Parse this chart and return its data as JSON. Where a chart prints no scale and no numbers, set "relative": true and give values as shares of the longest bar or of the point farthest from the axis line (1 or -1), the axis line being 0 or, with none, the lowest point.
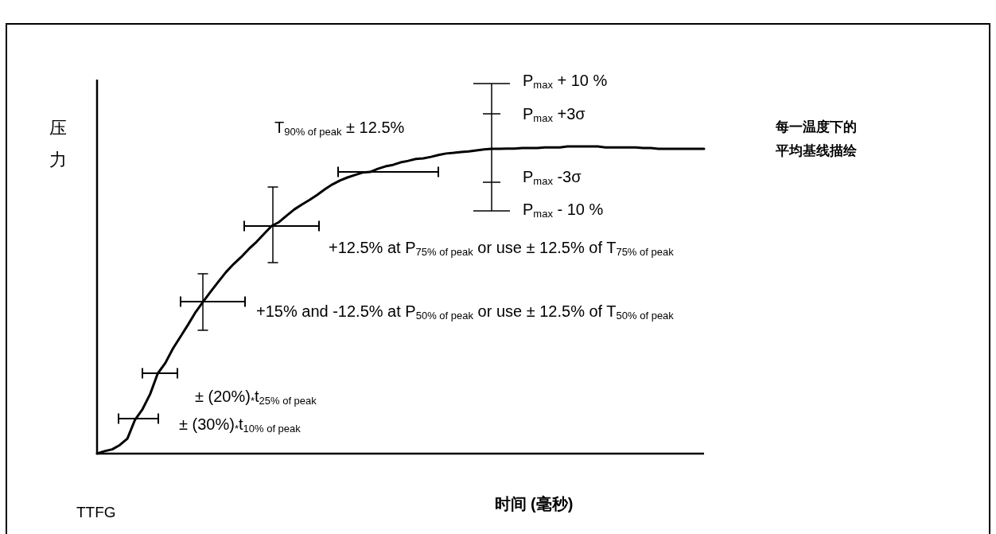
{
  "chart_data": {
    "type": "line",
    "relative": true,
    "xlabel": "时间 (毫秒)",
    "ylabel": "压力",
    "categories": [
      null,
      null,
      null,
      null,
      null,
      null,
      null,
      null,
      null,
      null,
      null,
      null,
      null,
      null,
      null,
      null,
      null,
      null,
      null,
      null,
      null,
      null,
      null,
      null,
      null,
      null,
      null,
      null,
      null,
      null,
      null,
      null,
      null,
      null,
      null,
      null,
      null,
      null,
      null,
      null,
      null,
      null,
      null,
      null,
      null,
      null,
      null,
      null,
      null,
      null,
      null,
      null,
      null,
      null,
      null,
      null,
      null,
      null,
      null,
      null,
      null,
      null,
      null,
      null,
      null,
      null,
      null,
      null,
      null,
      null,
      null,
      null,
      null,
      null,
      null,
      null,
      null,
      null,
      null,
      null,
      null
    ],
    "series": [
      {
        "color": "#000000",
        "values": [
          0,
          0.008,
          0.014,
          0.028,
          0.049,
          0.11,
          0.145,
          0.194,
          0.261,
          0.295,
          0.342,
          0.381,
          0.42,
          0.461,
          0.495,
          0.528,
          0.56,
          0.591,
          0.617,
          0.64,
          0.666,
          0.689,
          0.715,
          0.741,
          0.754,
          0.775,
          0.795,
          0.811,
          0.826,
          0.842,
          0.86,
          0.876,
          0.889,
          0.899,
          0.907,
          0.915,
          0.917,
          0.927,
          0.935,
          0.94,
          0.948,
          0.953,
          0.959,
          0.961,
          0.966,
          0.972,
          0.977,
          0.979,
          0.982,
          0.984,
          0.987,
          0.99,
          0.992,
          0.992,
          0.993,
          0.993,
          0.995,
          0.995,
          0.995,
          0.997,
          0.997,
          0.997,
          1,
          1,
          1,
          1,
          1,
          0.997,
          0.997,
          0.997,
          0.997,
          0.997,
          0.995,
          0.995,
          0.992,
          0.992,
          0.992,
          0.992,
          0.992,
          0.992,
          0.992
        ]
      }
    ],
    "annotations": [
      "T$_{90% of peak}$ ± 12.5%",
      "P$_{max}$ + 10 %",
      "P$_{max}$ +3σ",
      "P$_{max}$ -3σ",
      "P$_{max}$ - 10 %",
      "+12.5% at P$_{75% of peak}$ or use ± 12.5% of T$_{75% of peak}$",
      "+15% and -12.5% at P$_{50% of peak}$ or use ± 12.5% of T$_{50% of peak}$",
      "± (20%)$_{*}$t$_{25% of peak}$",
      "± (30%)$_{*}$t$_{10% of peak}$",
      "每一温度下的平均基线描绘",
      "TTFG"
    ]
  }
}
